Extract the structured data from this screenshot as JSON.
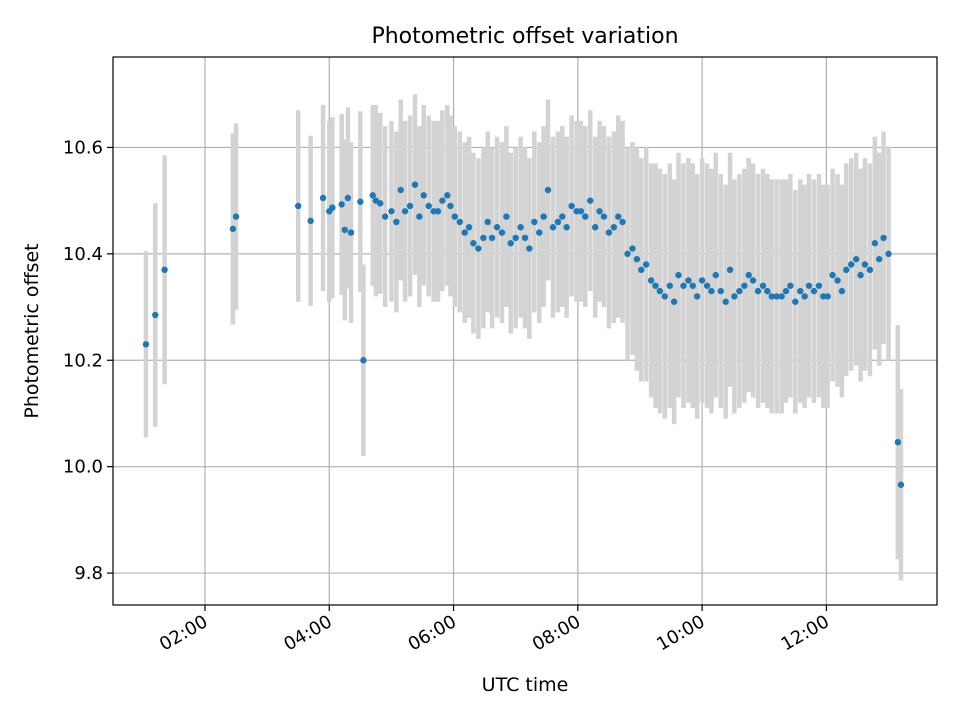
{
  "chart_data": {
    "type": "scatter",
    "title": "Photometric offset variation",
    "xlabel": "UTC time",
    "ylabel": "Photometric offset",
    "x_tick_labels": [
      "02:00",
      "04:00",
      "06:00",
      "08:00",
      "10:00",
      "12:00"
    ],
    "y_tick_labels": [
      "9.8",
      "10.0",
      "10.2",
      "10.4",
      "10.6"
    ],
    "x_ticks_hours": [
      2,
      4,
      6,
      8,
      10,
      12
    ],
    "y_ticks": [
      9.8,
      10.0,
      10.2,
      10.4,
      10.6
    ],
    "xlim_hours": [
      0.52,
      13.78
    ],
    "ylim": [
      9.74,
      10.77
    ],
    "grid": true,
    "colors": {
      "marker": "#1f77b4",
      "errorbar": "#d3d3d3",
      "grid": "#b0b0b0"
    },
    "series": [
      {
        "x_hours": [
          1.05,
          1.2,
          1.35,
          2.45,
          2.5,
          3.5,
          3.7,
          3.9,
          4.0,
          4.05,
          4.2,
          4.25,
          4.3,
          4.35,
          4.5,
          4.55,
          4.7,
          4.75,
          4.82,
          4.9,
          5.0,
          5.08,
          5.15,
          5.22,
          5.3,
          5.38,
          5.45,
          5.52,
          5.6,
          5.68,
          5.75,
          5.82,
          5.9,
          5.95,
          6.02,
          6.1,
          6.18,
          6.25,
          6.32,
          6.4,
          6.48,
          6.55,
          6.62,
          6.7,
          6.78,
          6.85,
          6.92,
          7.0,
          7.08,
          7.15,
          7.22,
          7.3,
          7.38,
          7.45,
          7.52,
          7.6,
          7.68,
          7.75,
          7.82,
          7.9,
          7.98,
          8.05,
          8.12,
          8.2,
          8.28,
          8.35,
          8.42,
          8.5,
          8.58,
          8.65,
          8.72,
          8.8,
          8.88,
          8.95,
          9.02,
          9.1,
          9.18,
          9.25,
          9.32,
          9.4,
          9.48,
          9.55,
          9.62,
          9.7,
          9.78,
          9.85,
          9.92,
          10.0,
          10.08,
          10.15,
          10.22,
          10.3,
          10.38,
          10.45,
          10.52,
          10.6,
          10.68,
          10.75,
          10.82,
          10.9,
          10.98,
          11.05,
          11.12,
          11.2,
          11.28,
          11.35,
          11.42,
          11.5,
          11.58,
          11.65,
          11.72,
          11.8,
          11.88,
          11.95,
          12.02,
          12.1,
          12.18,
          12.25,
          12.32,
          12.4,
          12.48,
          12.55,
          12.62,
          12.7,
          12.78,
          12.85,
          12.92,
          13.0,
          13.15,
          13.2
        ],
        "y": [
          10.23,
          10.285,
          10.37,
          10.447,
          10.47,
          10.49,
          10.462,
          10.505,
          10.48,
          10.487,
          10.493,
          10.445,
          10.505,
          10.44,
          10.498,
          10.2,
          10.51,
          10.5,
          10.495,
          10.47,
          10.48,
          10.46,
          10.52,
          10.48,
          10.49,
          10.53,
          10.47,
          10.51,
          10.49,
          10.48,
          10.48,
          10.5,
          10.51,
          10.49,
          10.47,
          10.46,
          10.44,
          10.45,
          10.42,
          10.41,
          10.43,
          10.46,
          10.43,
          10.45,
          10.44,
          10.47,
          10.42,
          10.43,
          10.45,
          10.43,
          10.41,
          10.46,
          10.44,
          10.47,
          10.52,
          10.45,
          10.46,
          10.47,
          10.45,
          10.49,
          10.48,
          10.48,
          10.47,
          10.5,
          10.45,
          10.48,
          10.47,
          10.44,
          10.45,
          10.47,
          10.46,
          10.4,
          10.41,
          10.39,
          10.37,
          10.38,
          10.35,
          10.34,
          10.33,
          10.32,
          10.34,
          10.31,
          10.36,
          10.34,
          10.35,
          10.34,
          10.32,
          10.35,
          10.34,
          10.33,
          10.36,
          10.33,
          10.31,
          10.37,
          10.32,
          10.33,
          10.34,
          10.36,
          10.35,
          10.33,
          10.34,
          10.33,
          10.32,
          10.32,
          10.32,
          10.33,
          10.34,
          10.31,
          10.33,
          10.32,
          10.34,
          10.33,
          10.34,
          10.32,
          10.32,
          10.36,
          10.35,
          10.33,
          10.37,
          10.38,
          10.39,
          10.36,
          10.38,
          10.37,
          10.42,
          10.39,
          10.43,
          10.4,
          10.046,
          9.966
        ],
        "yerr": [
          0.175,
          0.21,
          0.215,
          0.18,
          0.175,
          0.18,
          0.16,
          0.175,
          0.17,
          0.17,
          0.17,
          0.17,
          0.17,
          0.17,
          0.17,
          0.18,
          0.17,
          0.18,
          0.17,
          0.17,
          0.17,
          0.17,
          0.17,
          0.17,
          0.17,
          0.17,
          0.17,
          0.17,
          0.17,
          0.17,
          0.17,
          0.17,
          0.17,
          0.17,
          0.17,
          0.17,
          0.17,
          0.17,
          0.17,
          0.17,
          0.17,
          0.17,
          0.17,
          0.17,
          0.17,
          0.17,
          0.17,
          0.17,
          0.17,
          0.17,
          0.17,
          0.17,
          0.17,
          0.17,
          0.17,
          0.17,
          0.17,
          0.17,
          0.17,
          0.17,
          0.17,
          0.17,
          0.17,
          0.17,
          0.17,
          0.17,
          0.17,
          0.18,
          0.18,
          0.19,
          0.19,
          0.2,
          0.2,
          0.21,
          0.21,
          0.22,
          0.22,
          0.23,
          0.23,
          0.23,
          0.23,
          0.23,
          0.23,
          0.23,
          0.23,
          0.23,
          0.23,
          0.23,
          0.23,
          0.23,
          0.23,
          0.22,
          0.22,
          0.22,
          0.22,
          0.22,
          0.22,
          0.22,
          0.22,
          0.22,
          0.22,
          0.22,
          0.22,
          0.22,
          0.22,
          0.21,
          0.21,
          0.21,
          0.21,
          0.21,
          0.21,
          0.21,
          0.21,
          0.21,
          0.21,
          0.2,
          0.2,
          0.2,
          0.2,
          0.2,
          0.2,
          0.2,
          0.2,
          0.2,
          0.2,
          0.2,
          0.2,
          0.2,
          0.22,
          0.18
        ]
      }
    ]
  }
}
